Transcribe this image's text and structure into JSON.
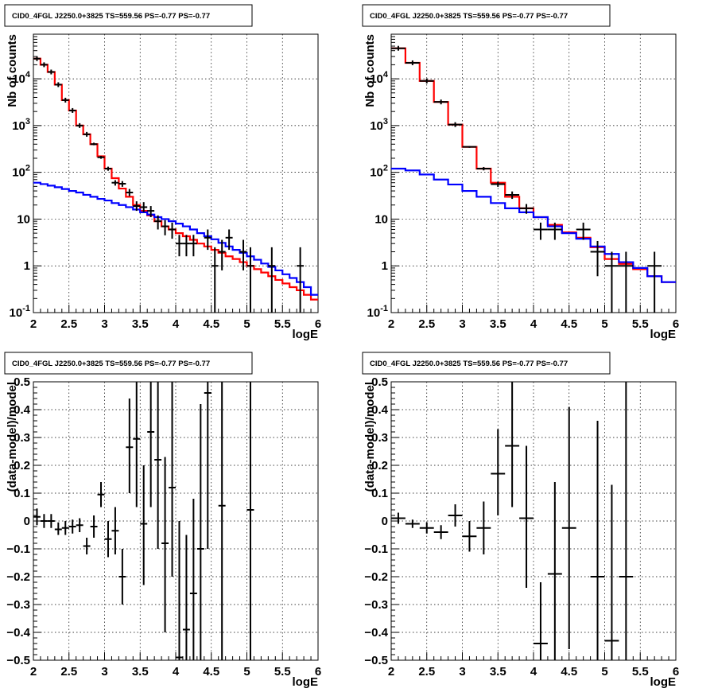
{
  "chart_data": [
    {
      "type": "histogram",
      "title": "CID0_4FGL J2250.0+3825 TS=559.56 PS=-0.77 PS=-0.77",
      "xlabel": "logE",
      "ylabel": "Nb of counts",
      "xlim": [
        2,
        6
      ],
      "ylim": [
        0.1,
        90000
      ],
      "yscale": "log",
      "grid": true,
      "xticks": [
        "2",
        "2.5",
        "3",
        "3.5",
        "4",
        "4.5",
        "5",
        "5.5",
        "6"
      ],
      "yticks": [
        {
          "value": 0.1,
          "label": "10^-1"
        },
        {
          "value": 1,
          "label": "1"
        },
        {
          "value": 10,
          "label": "10"
        },
        {
          "value": 100,
          "label": "10^2"
        },
        {
          "value": 1000,
          "label": "10^3"
        },
        {
          "value": 10000,
          "label": "10^4"
        }
      ],
      "bin_edges": [
        2.0,
        2.1,
        2.2,
        2.3,
        2.4,
        2.5,
        2.6,
        2.7,
        2.8,
        2.9,
        3.0,
        3.1,
        3.2,
        3.3,
        3.4,
        3.5,
        3.6,
        3.7,
        3.8,
        3.9,
        4.0,
        4.1,
        4.2,
        4.3,
        4.4,
        4.5,
        4.6,
        4.7,
        4.8,
        4.9,
        5.0,
        5.1,
        5.2,
        5.3,
        5.4,
        5.5,
        5.6,
        5.7,
        5.8,
        5.9,
        6.0
      ],
      "series": [
        {
          "color": "#ff0000",
          "values": [
            27000,
            20000,
            14000,
            7500,
            3500,
            2100,
            1000,
            650,
            400,
            220,
            120,
            75,
            45,
            30,
            20,
            15,
            12,
            9,
            7,
            6,
            5,
            4.3,
            3.6,
            3.0,
            2.6,
            2.2,
            1.9,
            1.6,
            1.4,
            1.2,
            1.0,
            0.85,
            0.72,
            0.6,
            0.5,
            0.42,
            0.35,
            0.3,
            0.24,
            0.19
          ]
        },
        {
          "color": "#0000ff",
          "values": [
            60,
            56,
            52,
            48,
            44,
            40,
            37,
            33,
            30,
            27,
            25,
            22,
            20,
            18,
            16,
            14,
            12.5,
            11,
            10,
            9,
            8,
            7,
            6,
            5,
            4.3,
            3.7,
            3.1,
            2.6,
            2.2,
            1.9,
            1.6,
            1.35,
            1.12,
            0.95,
            0.8,
            0.66,
            0.55,
            0.45,
            0.35,
            0.24
          ]
        }
      ],
      "points": [
        {
          "x": 2.05,
          "y": 27000,
          "xerr": 0.05,
          "ylo": 27000,
          "yhi": 27000
        },
        {
          "x": 2.15,
          "y": 20000,
          "xerr": 0.05,
          "ylo": 20000,
          "yhi": 20000
        },
        {
          "x": 2.25,
          "y": 14000,
          "xerr": 0.05,
          "ylo": 14000,
          "yhi": 14000
        },
        {
          "x": 2.35,
          "y": 7500,
          "xerr": 0.05,
          "ylo": 7500,
          "yhi": 7500
        },
        {
          "x": 2.45,
          "y": 3500,
          "xerr": 0.05,
          "ylo": 3500,
          "yhi": 3500
        },
        {
          "x": 2.55,
          "y": 2100,
          "xerr": 0.05,
          "ylo": 2100,
          "yhi": 2100
        },
        {
          "x": 2.65,
          "y": 1000,
          "xerr": 0.05,
          "ylo": 1000,
          "yhi": 1000
        },
        {
          "x": 2.75,
          "y": 650,
          "xerr": 0.05,
          "ylo": 650,
          "yhi": 650
        },
        {
          "x": 2.85,
          "y": 400,
          "xerr": 0.05,
          "ylo": 380,
          "yhi": 430
        },
        {
          "x": 2.95,
          "y": 210,
          "xerr": 0.05,
          "ylo": 195,
          "yhi": 225
        },
        {
          "x": 3.05,
          "y": 120,
          "xerr": 0.05,
          "ylo": 108,
          "yhi": 132
        },
        {
          "x": 3.15,
          "y": 60,
          "xerr": 0.05,
          "ylo": 52,
          "yhi": 68
        },
        {
          "x": 3.25,
          "y": 57,
          "xerr": 0.05,
          "ylo": 49,
          "yhi": 65
        },
        {
          "x": 3.35,
          "y": 37,
          "xerr": 0.05,
          "ylo": 31,
          "yhi": 44
        },
        {
          "x": 3.45,
          "y": 19,
          "xerr": 0.05,
          "ylo": 15,
          "yhi": 24
        },
        {
          "x": 3.55,
          "y": 18,
          "xerr": 0.05,
          "ylo": 14,
          "yhi": 23
        },
        {
          "x": 3.65,
          "y": 15,
          "xerr": 0.05,
          "ylo": 11,
          "yhi": 19
        },
        {
          "x": 3.75,
          "y": 9,
          "xerr": 0.05,
          "ylo": 6,
          "yhi": 12
        },
        {
          "x": 3.85,
          "y": 7,
          "xerr": 0.05,
          "ylo": 4.5,
          "yhi": 9.5
        },
        {
          "x": 3.95,
          "y": 6,
          "xerr": 0.05,
          "ylo": 3.8,
          "yhi": 8.4
        },
        {
          "x": 4.05,
          "y": 3,
          "xerr": 0.05,
          "ylo": 1.6,
          "yhi": 4.6
        },
        {
          "x": 4.15,
          "y": 3,
          "xerr": 0.05,
          "ylo": 1.6,
          "yhi": 4.6
        },
        {
          "x": 4.25,
          "y": 3,
          "xerr": 0.05,
          "ylo": 1.6,
          "yhi": 4.6
        },
        {
          "x": 4.45,
          "y": 4,
          "xerr": 0.05,
          "ylo": 2.2,
          "yhi": 6.0
        },
        {
          "x": 4.55,
          "y": 1,
          "xerr": 0.05,
          "ylo": 0.1,
          "yhi": 2.5
        },
        {
          "x": 4.65,
          "y": 2,
          "xerr": 0.05,
          "ylo": 0.8,
          "yhi": 3.6
        },
        {
          "x": 4.75,
          "y": 4,
          "xerr": 0.05,
          "ylo": 2.2,
          "yhi": 6.0
        },
        {
          "x": 4.95,
          "y": 2,
          "xerr": 0.05,
          "ylo": 0.8,
          "yhi": 3.6
        },
        {
          "x": 5.05,
          "y": 1,
          "xerr": 0.05,
          "ylo": 0.1,
          "yhi": 2.5
        },
        {
          "x": 5.35,
          "y": 1,
          "xerr": 0.05,
          "ylo": 0.1,
          "yhi": 2.5
        },
        {
          "x": 5.75,
          "y": 1,
          "xerr": 0.05,
          "ylo": 0.1,
          "yhi": 2.5
        }
      ]
    },
    {
      "type": "histogram",
      "title": "CID0_4FGL J2250.0+3825 TS=559.56 PS=-0.77 PS=-0.77",
      "xlabel": "logE",
      "ylabel": "Nb of counts",
      "xlim": [
        2,
        6
      ],
      "ylim": [
        0.1,
        90000
      ],
      "yscale": "log",
      "grid": true,
      "xticks": [
        "2",
        "2.5",
        "3",
        "3.5",
        "4",
        "4.5",
        "5",
        "5.5",
        "6"
      ],
      "yticks": [
        {
          "value": 0.1,
          "label": "10^-1"
        },
        {
          "value": 1,
          "label": "1"
        },
        {
          "value": 10,
          "label": "10"
        },
        {
          "value": 100,
          "label": "10^2"
        },
        {
          "value": 1000,
          "label": "10^3"
        },
        {
          "value": 10000,
          "label": "10^4"
        }
      ],
      "bin_edges": [
        2.0,
        2.2,
        2.4,
        2.6,
        2.8,
        3.0,
        3.2,
        3.4,
        3.6,
        3.8,
        4.0,
        4.2,
        4.4,
        4.6,
        4.8,
        5.0,
        5.2,
        5.4,
        5.6,
        5.8,
        6.0
      ],
      "series": [
        {
          "color": "#ff0000",
          "values": [
            45000,
            22000,
            9000,
            3200,
            1050,
            350,
            120,
            60,
            30,
            17,
            11,
            7.5,
            5.2,
            4.0,
            2.5,
            1.4,
            1.1,
            0.85,
            0.6,
            0.45
          ]
        },
        {
          "color": "#0000ff",
          "values": [
            120,
            110,
            90,
            70,
            55,
            40,
            30,
            22,
            17,
            14,
            11,
            7,
            5,
            3.8,
            2.6,
            1.8,
            1.2,
            0.9,
            0.6,
            0.45
          ]
        }
      ],
      "points": [
        {
          "x": 2.1,
          "y": 45000,
          "xerr": 0.1,
          "ylo": 45000,
          "yhi": 45000
        },
        {
          "x": 2.3,
          "y": 22000,
          "xerr": 0.1,
          "ylo": 22000,
          "yhi": 22000
        },
        {
          "x": 2.5,
          "y": 9000,
          "xerr": 0.1,
          "ylo": 9000,
          "yhi": 9000
        },
        {
          "x": 2.7,
          "y": 3200,
          "xerr": 0.1,
          "ylo": 3200,
          "yhi": 3200
        },
        {
          "x": 2.9,
          "y": 1050,
          "xerr": 0.1,
          "ylo": 1050,
          "yhi": 1050
        },
        {
          "x": 3.1,
          "y": 350,
          "xerr": 0.1,
          "ylo": 335,
          "yhi": 365
        },
        {
          "x": 3.3,
          "y": 120,
          "xerr": 0.1,
          "ylo": 110,
          "yhi": 130
        },
        {
          "x": 3.5,
          "y": 56,
          "xerr": 0.1,
          "ylo": 49,
          "yhi": 63
        },
        {
          "x": 3.7,
          "y": 33,
          "xerr": 0.1,
          "ylo": 27,
          "yhi": 39
        },
        {
          "x": 3.9,
          "y": 17,
          "xerr": 0.1,
          "ylo": 13,
          "yhi": 21
        },
        {
          "x": 4.1,
          "y": 6,
          "xerr": 0.1,
          "ylo": 3.6,
          "yhi": 8.4
        },
        {
          "x": 4.3,
          "y": 6,
          "xerr": 0.1,
          "ylo": 3.6,
          "yhi": 8.4
        },
        {
          "x": 4.7,
          "y": 6,
          "xerr": 0.1,
          "ylo": 3.6,
          "yhi": 8.4
        },
        {
          "x": 4.9,
          "y": 2,
          "xerr": 0.1,
          "ylo": 0.6,
          "yhi": 3.4
        },
        {
          "x": 5.1,
          "y": 1,
          "xerr": 0.1,
          "ylo": 0.1,
          "yhi": 2.0
        },
        {
          "x": 5.3,
          "y": 1,
          "xerr": 0.1,
          "ylo": 0.1,
          "yhi": 2.0
        },
        {
          "x": 5.7,
          "y": 1,
          "xerr": 0.1,
          "ylo": 0.1,
          "yhi": 2.0
        }
      ]
    },
    {
      "type": "scatter",
      "title": "CID0_4FGL J2250.0+3825 TS=559.56 PS=-0.77 PS=-0.77",
      "xlabel": "logE",
      "ylabel": "(data-model)/model",
      "xlim": [
        2,
        6
      ],
      "ylim": [
        -0.5,
        0.5
      ],
      "yscale": "linear",
      "grid": true,
      "xticks": [
        "2",
        "2.5",
        "3",
        "3.5",
        "4",
        "4.5",
        "5",
        "5.5",
        "6"
      ],
      "yticks": [
        {
          "value": -0.5,
          "label": "−0.5"
        },
        {
          "value": -0.4,
          "label": "−0.4"
        },
        {
          "value": -0.3,
          "label": "−0.3"
        },
        {
          "value": -0.2,
          "label": "−0.2"
        },
        {
          "value": -0.1,
          "label": "−0.1"
        },
        {
          "value": 0,
          "label": "0"
        },
        {
          "value": 0.1,
          "label": "0.1"
        },
        {
          "value": 0.2,
          "label": "0.2"
        },
        {
          "value": 0.3,
          "label": "0.3"
        },
        {
          "value": 0.4,
          "label": "0.4"
        },
        {
          "value": 0.5,
          "label": "0.5"
        }
      ],
      "points": [
        {
          "x": 2.05,
          "y": 0.015,
          "xerr": 0.05,
          "ylo": -0.015,
          "yhi": 0.045
        },
        {
          "x": 2.15,
          "y": 0.0,
          "xerr": 0.05,
          "ylo": -0.025,
          "yhi": 0.025
        },
        {
          "x": 2.25,
          "y": 0.0,
          "xerr": 0.05,
          "ylo": -0.025,
          "yhi": 0.025
        },
        {
          "x": 2.35,
          "y": -0.03,
          "xerr": 0.05,
          "ylo": -0.05,
          "yhi": -0.005
        },
        {
          "x": 2.45,
          "y": -0.025,
          "xerr": 0.05,
          "ylo": -0.05,
          "yhi": 0.0
        },
        {
          "x": 2.55,
          "y": -0.02,
          "xerr": 0.05,
          "ylo": -0.045,
          "yhi": 0.005
        },
        {
          "x": 2.65,
          "y": -0.015,
          "xerr": 0.05,
          "ylo": -0.04,
          "yhi": 0.01
        },
        {
          "x": 2.75,
          "y": -0.09,
          "xerr": 0.05,
          "ylo": -0.12,
          "yhi": -0.06
        },
        {
          "x": 2.85,
          "y": -0.02,
          "xerr": 0.05,
          "ylo": -0.06,
          "yhi": 0.02
        },
        {
          "x": 2.95,
          "y": 0.095,
          "xerr": 0.05,
          "ylo": 0.05,
          "yhi": 0.14
        },
        {
          "x": 3.05,
          "y": -0.065,
          "xerr": 0.05,
          "ylo": -0.13,
          "yhi": 0.0
        },
        {
          "x": 3.15,
          "y": -0.035,
          "xerr": 0.05,
          "ylo": -0.12,
          "yhi": 0.05
        },
        {
          "x": 3.25,
          "y": -0.2,
          "xerr": 0.05,
          "ylo": -0.3,
          "yhi": -0.1
        },
        {
          "x": 3.35,
          "y": 0.265,
          "xerr": 0.05,
          "ylo": 0.1,
          "yhi": 0.44
        },
        {
          "x": 3.45,
          "y": 0.295,
          "xerr": 0.05,
          "ylo": 0.05,
          "yhi": 0.5
        },
        {
          "x": 3.55,
          "y": -0.01,
          "xerr": 0.05,
          "ylo": -0.23,
          "yhi": 0.2
        },
        {
          "x": 3.65,
          "y": 0.32,
          "xerr": 0.05,
          "ylo": 0.05,
          "yhi": 0.5
        },
        {
          "x": 3.75,
          "y": 0.22,
          "xerr": 0.05,
          "ylo": -0.1,
          "yhi": 0.5
        },
        {
          "x": 3.85,
          "y": -0.08,
          "xerr": 0.05,
          "ylo": -0.4,
          "yhi": 0.23
        },
        {
          "x": 3.95,
          "y": 0.12,
          "xerr": 0.05,
          "ylo": -0.2,
          "yhi": 0.5
        },
        {
          "x": 4.05,
          "y": -0.49,
          "xerr": 0.05,
          "ylo": -0.5,
          "yhi": 0.0
        },
        {
          "x": 4.15,
          "y": -0.39,
          "xerr": 0.05,
          "ylo": -0.5,
          "yhi": -0.05
        },
        {
          "x": 4.25,
          "y": -0.26,
          "xerr": 0.05,
          "ylo": -0.5,
          "yhi": 0.08
        },
        {
          "x": 4.35,
          "y": -0.1,
          "xerr": 0.05,
          "ylo": -0.5,
          "yhi": 0.42
        },
        {
          "x": 4.45,
          "y": 0.46,
          "xerr": 0.05,
          "ylo": -0.1,
          "yhi": 0.5
        },
        {
          "x": 4.65,
          "y": 0.055,
          "xerr": 0.05,
          "ylo": -0.5,
          "yhi": 0.5
        },
        {
          "x": 5.05,
          "y": 0.04,
          "xerr": 0.05,
          "ylo": -0.5,
          "yhi": 0.5
        }
      ]
    },
    {
      "type": "scatter",
      "title": "CID0_4FGL J2250.0+3825 TS=559.56 PS=-0.77 PS=-0.77",
      "xlabel": "logE",
      "ylabel": "(data-model)/model",
      "xlim": [
        2,
        6
      ],
      "ylim": [
        -0.5,
        0.5
      ],
      "yscale": "linear",
      "grid": true,
      "xticks": [
        "2",
        "2.5",
        "3",
        "3.5",
        "4",
        "4.5",
        "5",
        "5.5",
        "6"
      ],
      "yticks": [
        {
          "value": -0.5,
          "label": "−0.5"
        },
        {
          "value": -0.4,
          "label": "−0.4"
        },
        {
          "value": -0.3,
          "label": "−0.3"
        },
        {
          "value": -0.2,
          "label": "−0.2"
        },
        {
          "value": -0.1,
          "label": "−0.1"
        },
        {
          "value": 0,
          "label": "0"
        },
        {
          "value": 0.1,
          "label": "0.1"
        },
        {
          "value": 0.2,
          "label": "0.2"
        },
        {
          "value": 0.3,
          "label": "0.3"
        },
        {
          "value": 0.4,
          "label": "0.4"
        },
        {
          "value": 0.5,
          "label": "0.5"
        }
      ],
      "points": [
        {
          "x": 2.1,
          "y": 0.01,
          "xerr": 0.1,
          "ylo": -0.01,
          "yhi": 0.03
        },
        {
          "x": 2.3,
          "y": -0.01,
          "xerr": 0.1,
          "ylo": -0.025,
          "yhi": 0.005
        },
        {
          "x": 2.5,
          "y": -0.025,
          "xerr": 0.1,
          "ylo": -0.045,
          "yhi": -0.005
        },
        {
          "x": 2.7,
          "y": -0.04,
          "xerr": 0.1,
          "ylo": -0.065,
          "yhi": -0.015
        },
        {
          "x": 2.9,
          "y": 0.02,
          "xerr": 0.1,
          "ylo": -0.02,
          "yhi": 0.06
        },
        {
          "x": 3.1,
          "y": -0.055,
          "xerr": 0.1,
          "ylo": -0.11,
          "yhi": 0.0
        },
        {
          "x": 3.3,
          "y": -0.025,
          "xerr": 0.1,
          "ylo": -0.12,
          "yhi": 0.07
        },
        {
          "x": 3.5,
          "y": 0.17,
          "xerr": 0.1,
          "ylo": 0.02,
          "yhi": 0.33
        },
        {
          "x": 3.7,
          "y": 0.27,
          "xerr": 0.1,
          "ylo": 0.05,
          "yhi": 0.5
        },
        {
          "x": 3.9,
          "y": 0.01,
          "xerr": 0.1,
          "ylo": -0.24,
          "yhi": 0.27
        },
        {
          "x": 4.1,
          "y": -0.44,
          "xerr": 0.1,
          "ylo": -0.5,
          "yhi": -0.22
        },
        {
          "x": 4.3,
          "y": -0.19,
          "xerr": 0.1,
          "ylo": -0.5,
          "yhi": 0.14
        },
        {
          "x": 4.5,
          "y": -0.025,
          "xerr": 0.1,
          "ylo": -0.46,
          "yhi": 0.41
        },
        {
          "x": 4.9,
          "y": -0.2,
          "xerr": 0.1,
          "ylo": -0.5,
          "yhi": 0.36
        },
        {
          "x": 5.1,
          "y": -0.43,
          "xerr": 0.1,
          "ylo": -0.5,
          "yhi": 0.13
        },
        {
          "x": 5.3,
          "y": -0.2,
          "xerr": 0.1,
          "ylo": -0.5,
          "yhi": 0.5
        }
      ]
    }
  ]
}
